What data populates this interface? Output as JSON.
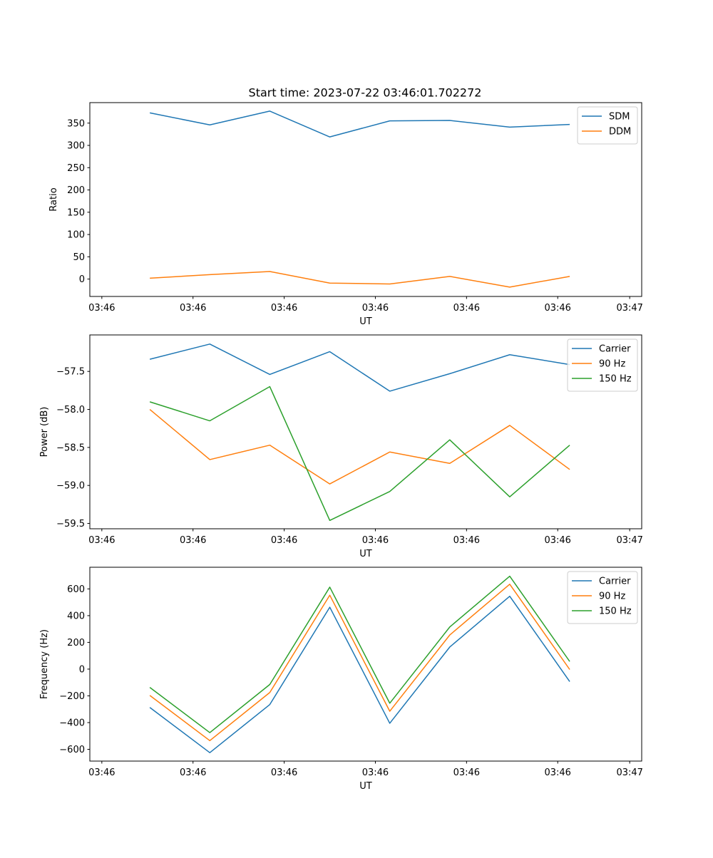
{
  "figure_title": "Start time: 2023-07-22 03:46:01.702272",
  "colors": {
    "blue": "#1f77b4",
    "orange": "#ff7f0e",
    "green": "#2ca02c"
  },
  "chart_data": [
    {
      "type": "line",
      "title": "Start time: 2023-07-22 03:46:01.702272",
      "xlabel": "UT",
      "ylabel": "Ratio",
      "xlim": [
        0,
        9.2
      ],
      "ylim": [
        -39,
        396
      ],
      "x": [
        1,
        2,
        3,
        4,
        5,
        6,
        7,
        8
      ],
      "xtick_values": [
        0.2,
        1.72,
        3.24,
        4.76,
        6.28,
        7.8,
        9.0
      ],
      "xtick_labels": [
        "03:46",
        "03:46",
        "03:46",
        "03:46",
        "03:46",
        "03:46",
        "03:47"
      ],
      "yticks": [
        0,
        50,
        100,
        150,
        200,
        250,
        300,
        350
      ],
      "ytick_labels": [
        "0",
        "50",
        "100",
        "150",
        "200",
        "250",
        "300",
        "350"
      ],
      "series": [
        {
          "name": "SDM",
          "color": "#1f77b4",
          "values": [
            373,
            346,
            377,
            319,
            355,
            356,
            341,
            347
          ]
        },
        {
          "name": "DDM",
          "color": "#ff7f0e",
          "values": [
            2,
            10,
            17,
            -9,
            -11,
            6,
            -18,
            6
          ]
        }
      ],
      "legend": "upper-right"
    },
    {
      "type": "line",
      "title": "",
      "xlabel": "UT",
      "ylabel": "Power (dB)",
      "xlim": [
        0,
        9.2
      ],
      "ylim": [
        -59.57,
        -57.02
      ],
      "x": [
        1,
        2,
        3,
        4,
        5,
        6,
        7,
        8
      ],
      "xtick_values": [
        0.2,
        1.72,
        3.24,
        4.76,
        6.28,
        7.8,
        9.0
      ],
      "xtick_labels": [
        "03:46",
        "03:46",
        "03:46",
        "03:46",
        "03:46",
        "03:46",
        "03:47"
      ],
      "yticks": [
        -57.5,
        -58.0,
        -58.5,
        -59.0,
        -59.5
      ],
      "ytick_labels": [
        "−57.5",
        "−58.0",
        "−58.5",
        "−59.0",
        "−59.5"
      ],
      "series": [
        {
          "name": "Carrier",
          "color": "#1f77b4",
          "values": [
            -57.34,
            -57.14,
            -57.54,
            -57.24,
            -57.76,
            -57.53,
            -57.28,
            -57.41
          ]
        },
        {
          "name": "90 Hz",
          "color": "#ff7f0e",
          "values": [
            -58.0,
            -58.66,
            -58.47,
            -58.98,
            -58.56,
            -58.71,
            -58.21,
            -58.79
          ]
        },
        {
          "name": "150 Hz",
          "color": "#2ca02c",
          "values": [
            -57.9,
            -58.15,
            -57.7,
            -59.46,
            -59.08,
            -58.4,
            -59.15,
            -58.47
          ]
        }
      ],
      "legend": "upper-right"
    },
    {
      "type": "line",
      "title": "",
      "xlabel": "UT",
      "ylabel": "Frequency (Hz)",
      "xlim": [
        0,
        9.2
      ],
      "ylim": [
        -688,
        762
      ],
      "x": [
        1,
        2,
        3,
        4,
        5,
        6,
        7,
        8
      ],
      "xtick_values": [
        0.2,
        1.72,
        3.24,
        4.76,
        6.28,
        7.8,
        9.0
      ],
      "xtick_labels": [
        "03:46",
        "03:46",
        "03:46",
        "03:46",
        "03:46",
        "03:46",
        "03:47"
      ],
      "yticks": [
        600,
        400,
        200,
        0,
        -200,
        -400,
        -600
      ],
      "ytick_labels": [
        "600",
        "400",
        "200",
        "0",
        "−200",
        "−400",
        "−600"
      ],
      "series": [
        {
          "name": "Carrier",
          "color": "#1f77b4",
          "values": [
            -287,
            -625,
            -265,
            463,
            -405,
            165,
            545,
            -93
          ]
        },
        {
          "name": "90 Hz",
          "color": "#ff7f0e",
          "values": [
            -197,
            -535,
            -175,
            553,
            -315,
            255,
            635,
            -3
          ]
        },
        {
          "name": "150 Hz",
          "color": "#2ca02c",
          "values": [
            -137,
            -475,
            -115,
            613,
            -255,
            315,
            695,
            57
          ]
        }
      ],
      "legend": "upper-right"
    }
  ]
}
